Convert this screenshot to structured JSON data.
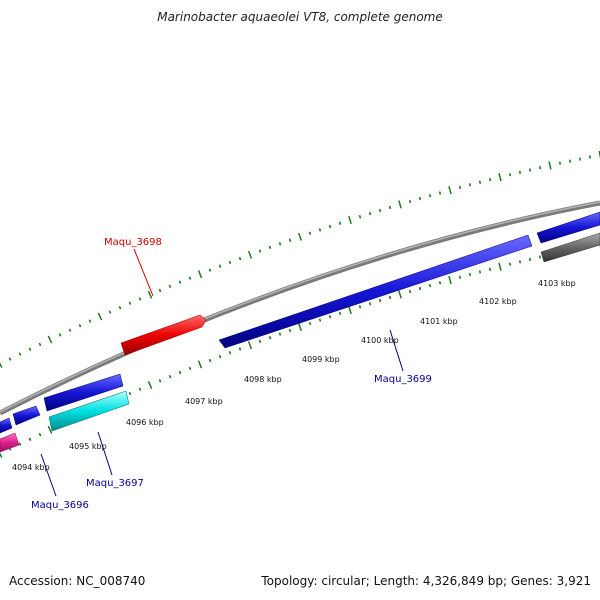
{
  "title": "Marinobacter aquaeolei VT8, complete genome",
  "footer": {
    "accession": "Accession: NC_008740",
    "summary": "Topology: circular; Length: 4,326,849 bp; Genes: 3,921"
  },
  "scale": {
    "ticks": [
      {
        "kbp": 4094,
        "label": "4094 kbp"
      },
      {
        "kbp": 4095,
        "label": "4095 kbp"
      },
      {
        "kbp": 4096,
        "label": "4096 kbp"
      },
      {
        "kbp": 4097,
        "label": "4097 kbp"
      },
      {
        "kbp": 4098,
        "label": "4098 kbp"
      },
      {
        "kbp": 4099,
        "label": "4099 kbp"
      },
      {
        "kbp": 4100,
        "label": "4100 kbp"
      },
      {
        "kbp": 4101,
        "label": "4101 kbp"
      },
      {
        "kbp": 4102,
        "label": "4102 kbp"
      },
      {
        "kbp": 4103,
        "label": "4103 kbp"
      }
    ]
  },
  "genes": [
    {
      "name": "Maqu_3698",
      "color": "#cc0000",
      "labelColor": "#cc0000"
    },
    {
      "name": "Maqu_3699",
      "color": "#0000cc",
      "labelColor": "#00008b"
    },
    {
      "name": "Maqu_3697",
      "color": "#00cccc",
      "labelColor": "#00008b"
    },
    {
      "name": "Maqu_3696",
      "color": "#cc1a8a",
      "labelColor": "#00008b"
    }
  ],
  "colors": {
    "backbone": "#8a8a8a",
    "tick": "#1f7a1f",
    "cds_blue": "#1515d6",
    "cds_gray": "#666666"
  }
}
